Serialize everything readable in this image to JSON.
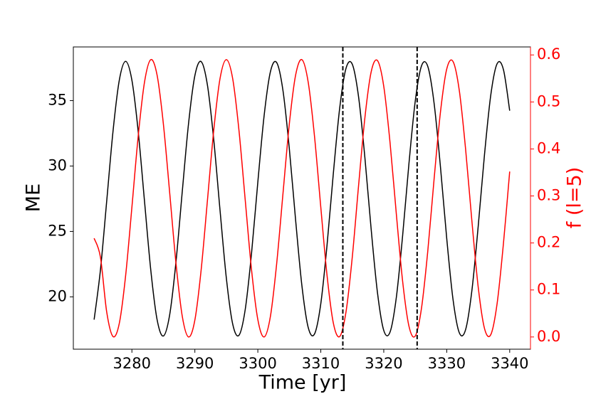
{
  "chart_data": {
    "type": "line",
    "xlabel": "Time [yr]",
    "ylabel": "ME",
    "y2label": "f (l=5)",
    "y2color": "#ff0000",
    "x": [
      3274,
      3275,
      3276,
      3277,
      3278,
      3279,
      3280,
      3281,
      3282,
      3283,
      3284,
      3285,
      3286,
      3287,
      3288,
      3289,
      3290,
      3291,
      3292,
      3293,
      3294,
      3295,
      3296,
      3297,
      3298,
      3299,
      3300,
      3301,
      3302,
      3303,
      3304,
      3305,
      3306,
      3307,
      3308,
      3309,
      3310,
      3311,
      3312,
      3313,
      3314,
      3315,
      3316,
      3317,
      3318,
      3319,
      3320,
      3321,
      3322,
      3323,
      3324,
      3325,
      3326,
      3327,
      3328,
      3329,
      3330,
      3331,
      3332,
      3333,
      3334,
      3335,
      3336,
      3337,
      3338,
      3339,
      3340
    ],
    "series": [
      {
        "color": "#000000",
        "axis": "y",
        "values": [
          18.26,
          22.04,
          27.32,
          32.65,
          36.56,
          38.0,
          36.56,
          32.65,
          27.32,
          22.04,
          18.26,
          17.01,
          18.63,
          22.67,
          28.05,
          33.26,
          36.91,
          37.98,
          36.17,
          32.0,
          26.6,
          21.43,
          17.94,
          17.06,
          19.04,
          23.33,
          28.77,
          33.85,
          37.21,
          37.9,
          35.74,
          31.33,
          25.87,
          20.85,
          17.66,
          17.16,
          19.48,
          24.0,
          29.48,
          34.42,
          37.46,
          37.78,
          35.28,
          30.65,
          25.16,
          20.32,
          17.43,
          17.31,
          19.97,
          24.7,
          30.19,
          34.96,
          37.66,
          37.6,
          34.77,
          29.95,
          24.46,
          19.8,
          17.25,
          17.5,
          20.5,
          25.4,
          30.88,
          35.44,
          37.82,
          37.38,
          34.23
        ]
      },
      {
        "color": "#ff0000",
        "axis": "y2",
        "values": [
          0.21,
          0.17,
          0.053,
          0.001,
          0.029,
          0.13,
          0.276,
          0.427,
          0.542,
          0.59,
          0.557,
          0.453,
          0.307,
          0.157,
          0.044,
          0.0,
          0.036,
          0.143,
          0.291,
          0.44,
          0.55,
          0.59,
          0.55,
          0.44,
          0.291,
          0.143,
          0.037,
          0.0,
          0.044,
          0.157,
          0.306,
          0.453,
          0.557,
          0.59,
          0.542,
          0.427,
          0.276,
          0.13,
          0.029,
          0.001,
          0.053,
          0.17,
          0.322,
          0.466,
          0.564,
          0.588,
          0.533,
          0.413,
          0.261,
          0.118,
          0.023,
          0.002,
          0.062,
          0.184,
          0.337,
          0.478,
          0.57,
          0.586,
          0.524,
          0.399,
          0.246,
          0.106,
          0.018,
          0.005,
          0.071,
          0.198,
          0.352
        ]
      }
    ],
    "vlines": [
      3313.5,
      3325.3
    ],
    "xlim": [
      3270.7,
      3343.3
    ],
    "xticks": [
      3280,
      3290,
      3300,
      3310,
      3320,
      3330,
      3340
    ],
    "ylim": [
      16.0,
      39.1
    ],
    "yticks": [
      20,
      25,
      30,
      35
    ],
    "y2lim": [
      -0.026,
      0.617
    ],
    "y2ticks": [
      0.0,
      0.1,
      0.2,
      0.3,
      0.4,
      0.5,
      0.6
    ]
  }
}
